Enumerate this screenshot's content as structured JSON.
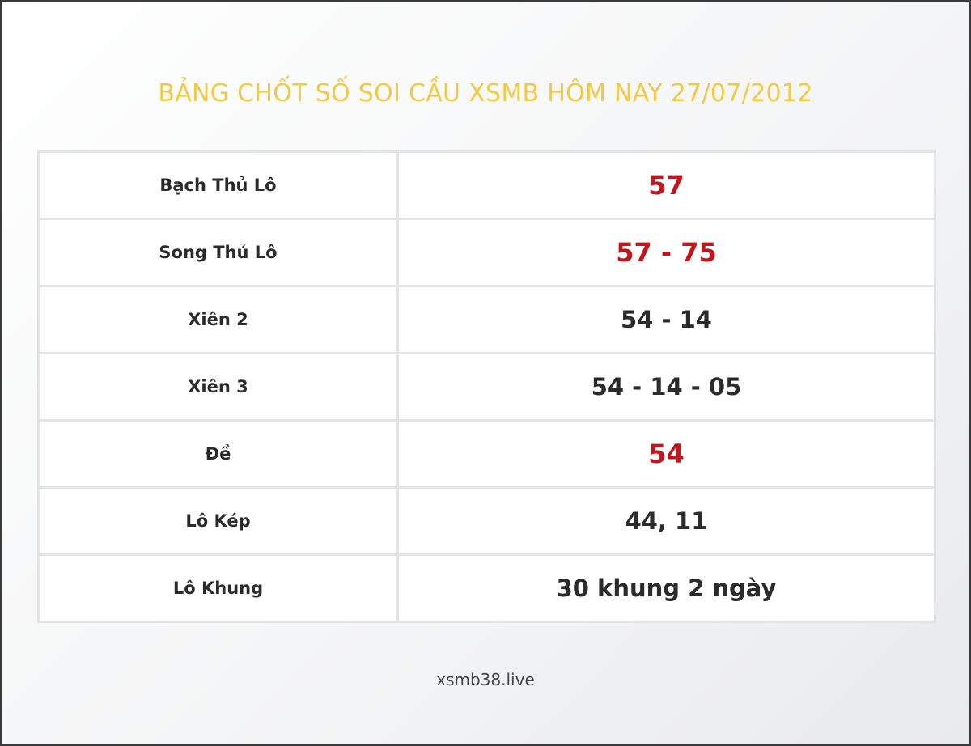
{
  "header": {
    "title": "BẢNG CHỐT SỐ SOI CẦU XSMB HÔM NAY 27/07/2012"
  },
  "table": {
    "rows": [
      [
        "Bạch Thủ Lô",
        "57"
      ],
      [
        "Song Thủ Lô",
        "57 - 75"
      ],
      [
        "Xiên 2",
        "54 - 14"
      ],
      [
        "Xiên 3",
        "54 - 14 - 05"
      ],
      [
        "Đề",
        "54"
      ],
      [
        "Lô Kép",
        "44, 11"
      ],
      [
        "Lô Khung",
        "30 khung 2 ngày"
      ]
    ],
    "highlighted_rows": [
      0,
      1,
      4
    ]
  },
  "footer": {
    "text": "xsmb38.live"
  }
}
